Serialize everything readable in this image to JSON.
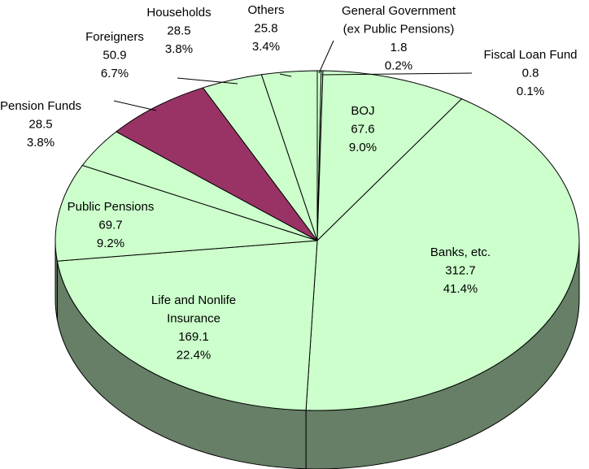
{
  "chart_data": {
    "type": "pie3d",
    "categories": [
      [
        "General Government",
        "(ex Public Pensions)"
      ],
      [
        "Fiscal Loan Fund"
      ],
      [
        "BOJ"
      ],
      [
        "Banks, etc."
      ],
      [
        "Life and Nonlife",
        "Insurance"
      ],
      [
        "Public Pensions"
      ],
      [
        "Pension Funds"
      ],
      [
        "Foreigners"
      ],
      [
        "Households"
      ],
      [
        "Others"
      ]
    ],
    "values": [
      1.8,
      0.8,
      67.6,
      312.7,
      169.1,
      69.7,
      28.5,
      50.9,
      28.5,
      25.8
    ],
    "percentages": {
      "values": [
        0.2,
        0.1,
        9.0,
        41.4,
        22.4,
        9.2,
        3.8,
        6.7,
        3.8,
        3.4
      ],
      "value_labels": [
        "0.2%",
        "0.1%",
        "9.0%",
        "41.4%",
        "22.4%",
        "9.2%",
        "3.8%",
        "6.7%",
        "3.8%",
        "3.4%"
      ]
    },
    "colors": [
      "#ccffcc",
      "#ccffcc",
      "#ccffcc",
      "#ccffcc",
      "#ccffcc",
      "#ccffcc",
      "#ccffcc",
      "#993366",
      "#ccffcc",
      "#ccffcc"
    ],
    "side_color": "#667f66"
  }
}
